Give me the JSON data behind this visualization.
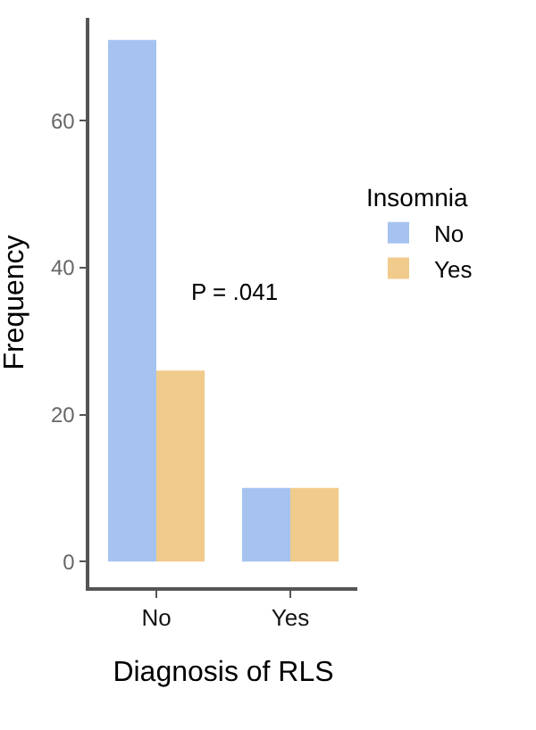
{
  "chart_data": {
    "type": "bar",
    "xlabel": "Diagnosis of RLS",
    "ylabel": "Frequency",
    "legend_title": "Insomnia",
    "categories": [
      "No",
      "Yes"
    ],
    "series": [
      {
        "name": "No",
        "color": "#a6c3f0",
        "values": [
          71,
          10
        ]
      },
      {
        "name": "Yes",
        "color": "#f0cb8c",
        "values": [
          26,
          10
        ]
      }
    ],
    "ylim": [
      -3.5,
      74
    ],
    "yticks": [
      0,
      20,
      40,
      60
    ],
    "annotations": [
      "P = .041"
    ],
    "grid": false,
    "legend": "right"
  }
}
